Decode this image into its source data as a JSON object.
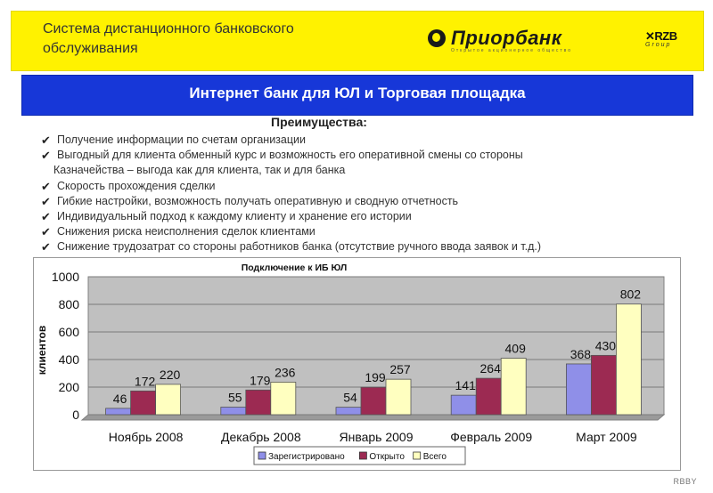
{
  "header": {
    "title_line1": "Система дистанционного банковского",
    "title_line2": "обслуживания",
    "bank_logo_text": "Приорбанк",
    "bank_logo_subtitle": "Открытое акционерное общество",
    "group_logo_mark": "RZB",
    "group_logo_sub": "Group",
    "band_color": "#fff200"
  },
  "title_bar": {
    "text": "Интернет банк для ЮЛ и Торговая площадка",
    "color": "#1737d8"
  },
  "advantages": {
    "heading": "Преимущества:",
    "items": [
      "Получение информации по счетам организации",
      "Выгодный для клиента обменный курс и возможность его оперативной смены со стороны",
      "Казначейства – выгода как для клиента, так и для банка",
      "Скорость прохождения сделки",
      "Гибкие настройки, возможность получать оперативную и сводную отчетность",
      "Индивидуальный подход к каждому клиенту и хранение его истории",
      "Снижения риска неисполнения сделок клиентами",
      "Снижение трудозатрат со стороны работников банка (отсутствие ручного ввода заявок и т.д.)"
    ]
  },
  "chart_data": {
    "type": "bar",
    "title": "Подключение к ИБ ЮЛ",
    "xlabel": "",
    "ylabel": "клиентов",
    "ylim": [
      0,
      1000
    ],
    "yticks": [
      0,
      200,
      400,
      600,
      800,
      1000
    ],
    "grid": true,
    "legend_position": "bottom",
    "categories": [
      "Ноябрь 2008",
      "Декабрь 2008",
      "Январь 2009",
      "Февраль 2009",
      "Март 2009"
    ],
    "series": [
      {
        "name": "Зарегистрировано",
        "values": [
          46,
          55,
          54,
          141,
          368
        ],
        "color": "#8f8fe8"
      },
      {
        "name": "Открыто",
        "values": [
          172,
          179,
          199,
          264,
          430
        ],
        "color": "#9c2a52"
      },
      {
        "name": "Всего",
        "values": [
          220,
          236,
          257,
          409,
          802
        ],
        "color": "#ffffc0"
      }
    ],
    "plot_background": "#c0c0c0"
  },
  "footer": {
    "mark": "RBBY"
  }
}
